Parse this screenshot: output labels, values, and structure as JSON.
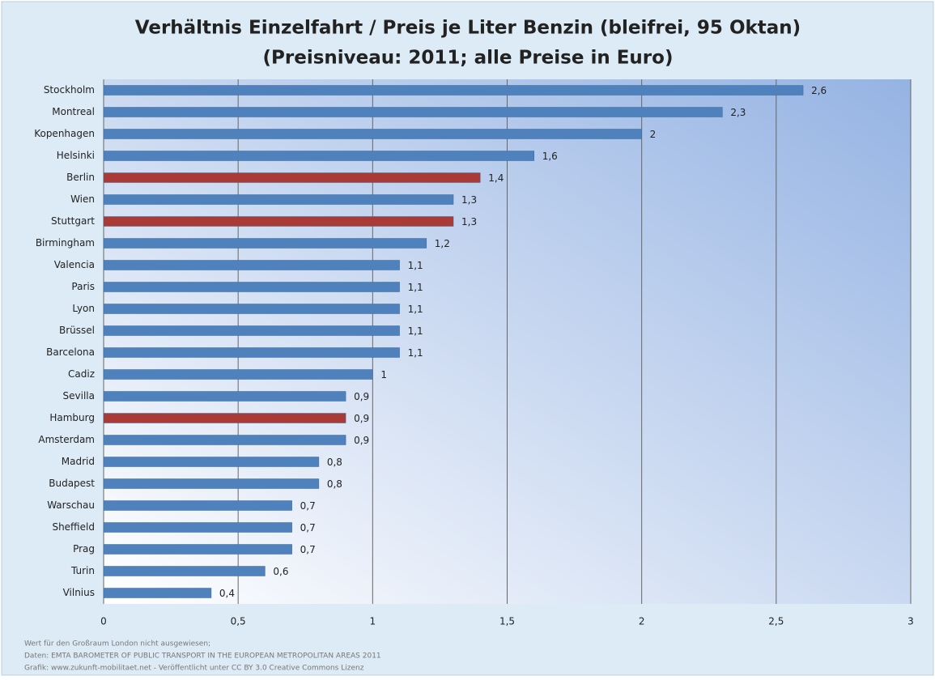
{
  "chart_data": {
    "type": "hbar",
    "title": "Verhältnis Einzelfahrt / Preis je Liter Benzin (bleifrei, 95 Oktan)",
    "subtitle": "(Preisniveau: 2011; alle Preise in Euro)",
    "categories": [
      "Stockholm",
      "Montreal",
      "Kopenhagen",
      "Helsinki",
      "Berlin",
      "Wien",
      "Stuttgart",
      "Birmingham",
      "Valencia",
      "Paris",
      "Lyon",
      "Brüssel",
      "Barcelona",
      "Cadiz",
      "Sevilla",
      "Hamburg",
      "Amsterdam",
      "Madrid",
      "Budapest",
      "Warschau",
      "Sheffield",
      "Prag",
      "Turin",
      "Vilnius"
    ],
    "values": [
      2.6,
      2.3,
      2,
      1.6,
      1.4,
      1.3,
      1.3,
      1.2,
      1.1,
      1.1,
      1.1,
      1.1,
      1.1,
      1,
      0.9,
      0.9,
      0.9,
      0.8,
      0.8,
      0.7,
      0.7,
      0.7,
      0.6,
      0.4
    ],
    "value_labels": [
      "2,6",
      "2,3",
      "2",
      "1,6",
      "1,4",
      "1,3",
      "1,3",
      "1,2",
      "1,1",
      "1,1",
      "1,1",
      "1,1",
      "1,1",
      "1",
      "0,9",
      "0,9",
      "0,9",
      "0,8",
      "0,8",
      "0,7",
      "0,7",
      "0,7",
      "0,6",
      "0,4"
    ],
    "colors": [
      "#4f81bd",
      "#4f81bd",
      "#4f81bd",
      "#4f81bd",
      "#a93a36",
      "#4f81bd",
      "#a93a36",
      "#4f81bd",
      "#4f81bd",
      "#4f81bd",
      "#4f81bd",
      "#4f81bd",
      "#4f81bd",
      "#4f81bd",
      "#4f81bd",
      "#a93a36",
      "#4f81bd",
      "#4f81bd",
      "#4f81bd",
      "#4f81bd",
      "#4f81bd",
      "#4f81bd",
      "#4f81bd",
      "#4f81bd"
    ],
    "xlim": [
      0,
      3
    ],
    "xticks": [
      0,
      {
        "value": 0.5,
        "label": "0,5"
      },
      1,
      {
        "value": 1.5,
        "label": "1,5"
      },
      2,
      {
        "value": 2.5,
        "label": "2,5"
      },
      3
    ],
    "grid": true,
    "notes": [
      "Wert für den Großraum London nicht ausgewiesen;",
      "Daten: EMTA BAROMETER OF PUBLIC TRANSPORT IN THE EUROPEAN METROPOLITAN AREAS 2011",
      "Grafik: www.zukunft-mobilitaet.net - Veröffentlicht unter CC BY 3.0 Creative Commons Lizenz"
    ]
  }
}
